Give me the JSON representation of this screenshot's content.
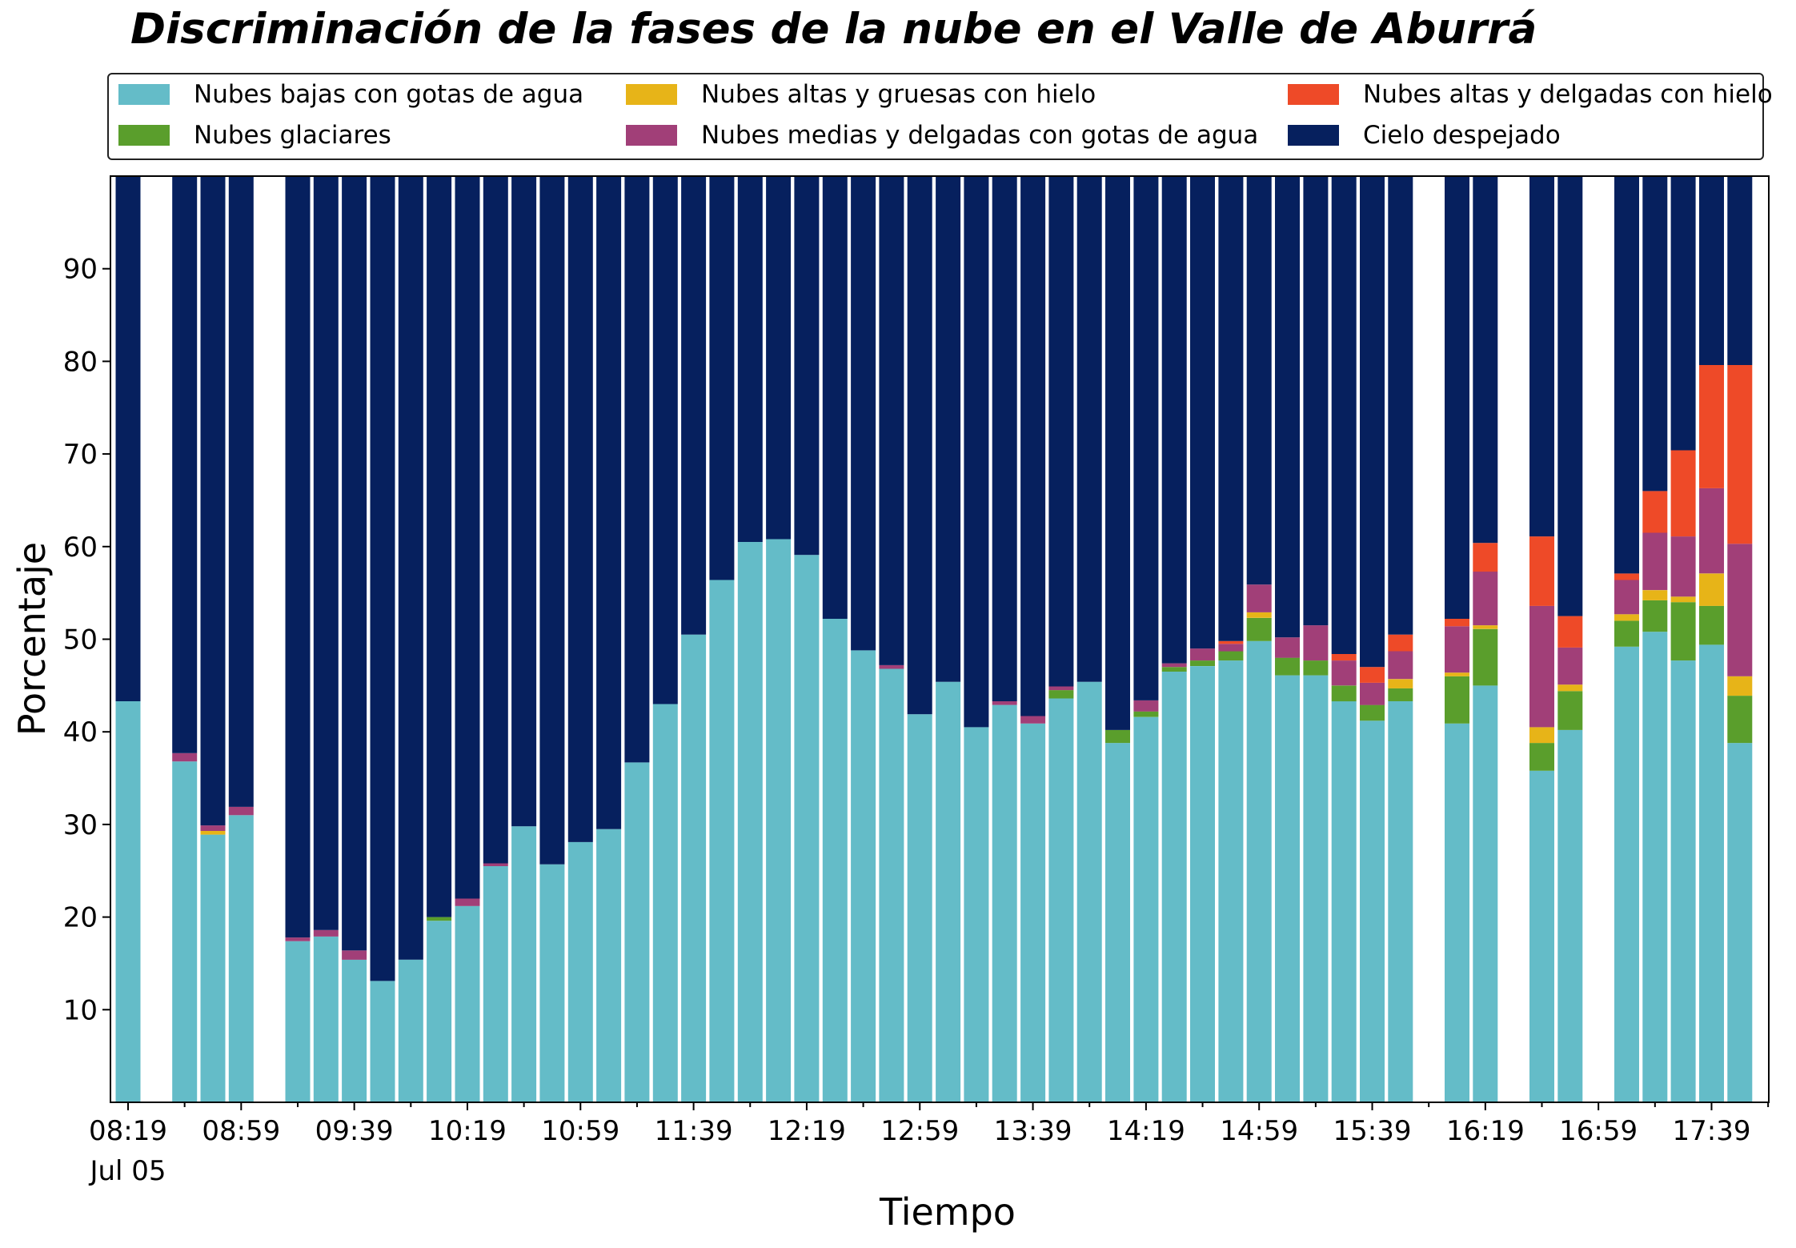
{
  "chart_data": {
    "type": "bar",
    "stacked": true,
    "title": "Discriminación de la fases de la nube en el Valle de Aburrá",
    "xlabel": "Tiempo",
    "ylabel": "Porcentaje",
    "ylim": [
      0,
      100
    ],
    "yticks": [
      10,
      20,
      30,
      40,
      50,
      60,
      70,
      80,
      90
    ],
    "legend_position": "top",
    "grid": false,
    "x_start_label": "08:19",
    "x_date_label": "Jul 05",
    "x_tick_labels": [
      "08:19",
      "08:59",
      "09:39",
      "10:19",
      "10:59",
      "11:39",
      "12:19",
      "12:59",
      "13:39",
      "14:19",
      "14:59",
      "15:39",
      "16:19",
      "16:59",
      "17:39"
    ],
    "categories": [
      "08:19",
      "08:29",
      "08:39",
      "08:49",
      "08:59",
      "09:09",
      "09:19",
      "09:29",
      "09:39",
      "09:49",
      "09:59",
      "10:09",
      "10:19",
      "10:29",
      "10:39",
      "10:49",
      "10:59",
      "11:09",
      "11:19",
      "11:29",
      "11:39",
      "11:49",
      "11:59",
      "12:09",
      "12:19",
      "12:29",
      "12:39",
      "12:49",
      "12:59",
      "13:09",
      "13:19",
      "13:29",
      "13:39",
      "13:49",
      "13:59",
      "14:09",
      "14:19",
      "14:29",
      "14:39",
      "14:49",
      "14:59",
      "15:09",
      "15:19",
      "15:29",
      "15:39",
      "15:49",
      "15:59",
      "16:09",
      "16:19",
      "16:29",
      "16:39",
      "16:49",
      "16:59",
      "17:09",
      "17:19",
      "17:29",
      "17:39",
      "17:49"
    ],
    "series": [
      {
        "name": "Nubes bajas con gotas de agua",
        "color": "#64BCC8",
        "values": [
          43.3,
          null,
          36.8,
          28.9,
          31.0,
          null,
          17.4,
          17.9,
          15.4,
          13.1,
          15.4,
          19.6,
          21.2,
          25.5,
          29.8,
          25.7,
          28.1,
          29.5,
          36.7,
          43.0,
          50.5,
          56.4,
          60.5,
          60.8,
          59.1,
          52.2,
          48.8,
          46.8,
          41.9,
          45.4,
          40.5,
          42.9,
          40.9,
          43.6,
          45.4,
          38.8,
          41.6,
          46.5,
          47.1,
          47.7,
          49.8,
          46.1,
          46.1,
          43.3,
          41.2,
          43.3,
          null,
          40.9,
          45.0,
          null,
          35.8,
          40.2,
          null,
          49.2,
          50.8,
          47.7,
          49.4,
          38.8
        ]
      },
      {
        "name": "Nubes glaciares",
        "color": "#5A9E2C",
        "values": [
          0,
          null,
          0,
          0,
          0,
          null,
          0,
          0,
          0,
          0,
          0,
          0.4,
          0,
          0,
          0,
          0,
          0,
          0,
          0,
          0,
          0,
          0,
          0,
          0,
          0,
          0,
          0,
          0,
          0,
          0,
          0,
          0,
          0,
          0.9,
          0,
          1.4,
          0.6,
          0.5,
          0.6,
          1.0,
          2.5,
          1.9,
          1.6,
          1.7,
          1.7,
          1.4,
          null,
          5.1,
          6.1,
          null,
          3.0,
          4.2,
          null,
          2.8,
          3.4,
          6.3,
          4.2,
          5.1
        ]
      },
      {
        "name": "Nubes altas y gruesas con hielo",
        "color": "#E7B418",
        "values": [
          0,
          null,
          0,
          0.4,
          0,
          null,
          0,
          0,
          0,
          0,
          0,
          0,
          0,
          0,
          0,
          0,
          0,
          0,
          0,
          0,
          0,
          0,
          0,
          0,
          0,
          0,
          0,
          0,
          0,
          0,
          0,
          0,
          0,
          0,
          0,
          0,
          0,
          0,
          0,
          0,
          0.6,
          0,
          0,
          0,
          0,
          1.0,
          null,
          0.4,
          0.4,
          null,
          1.7,
          0.7,
          null,
          0.7,
          1.1,
          0.6,
          3.5,
          2.1
        ]
      },
      {
        "name": "Nubes medias y delgadas con gotas de agua",
        "color": "#A13F78",
        "values": [
          0,
          null,
          0.9,
          0.6,
          0.9,
          null,
          0.4,
          0.7,
          1.0,
          0,
          0,
          0,
          0.8,
          0.3,
          0,
          0,
          0,
          0,
          0,
          0,
          0,
          0,
          0,
          0,
          0,
          0,
          0,
          0.4,
          0,
          0,
          0,
          0.4,
          0.8,
          0.4,
          0,
          0,
          1.2,
          0.4,
          1.3,
          0.8,
          3.0,
          2.2,
          3.8,
          2.7,
          2.4,
          3.0,
          null,
          5.0,
          5.8,
          null,
          13.1,
          4.0,
          null,
          3.7,
          6.2,
          6.5,
          9.2,
          14.3
        ]
      },
      {
        "name": "Nubes altas y delgadas con hielo",
        "color": "#EE4A28",
        "values": [
          0,
          null,
          0,
          0,
          0,
          null,
          0,
          0,
          0,
          0,
          0,
          0,
          0,
          0,
          0,
          0,
          0,
          0,
          0,
          0,
          0,
          0,
          0,
          0,
          0,
          0,
          0,
          0,
          0,
          0,
          0,
          0,
          0,
          0,
          0,
          0,
          0,
          0,
          0,
          0.3,
          0,
          0,
          0,
          0.7,
          1.7,
          1.8,
          null,
          0.8,
          3.1,
          null,
          7.5,
          3.4,
          null,
          0.7,
          4.5,
          9.3,
          13.3,
          19.3
        ]
      },
      {
        "name": "Cielo despejado",
        "color": "#06205E",
        "values": [
          56.7,
          null,
          62.3,
          70.1,
          68.1,
          null,
          82.2,
          81.4,
          83.6,
          86.9,
          84.6,
          80.0,
          78.0,
          74.2,
          70.2,
          74.3,
          71.9,
          70.5,
          63.3,
          57.0,
          49.5,
          43.6,
          39.5,
          39.2,
          40.9,
          47.8,
          51.2,
          52.8,
          58.1,
          54.6,
          59.5,
          56.7,
          58.3,
          55.1,
          54.6,
          59.8,
          56.6,
          52.6,
          51.0,
          50.2,
          44.1,
          49.8,
          48.5,
          51.6,
          53.0,
          49.5,
          null,
          47.8,
          39.6,
          null,
          38.9,
          47.5,
          null,
          42.9,
          34.0,
          29.6,
          20.4,
          20.4
        ]
      }
    ]
  }
}
